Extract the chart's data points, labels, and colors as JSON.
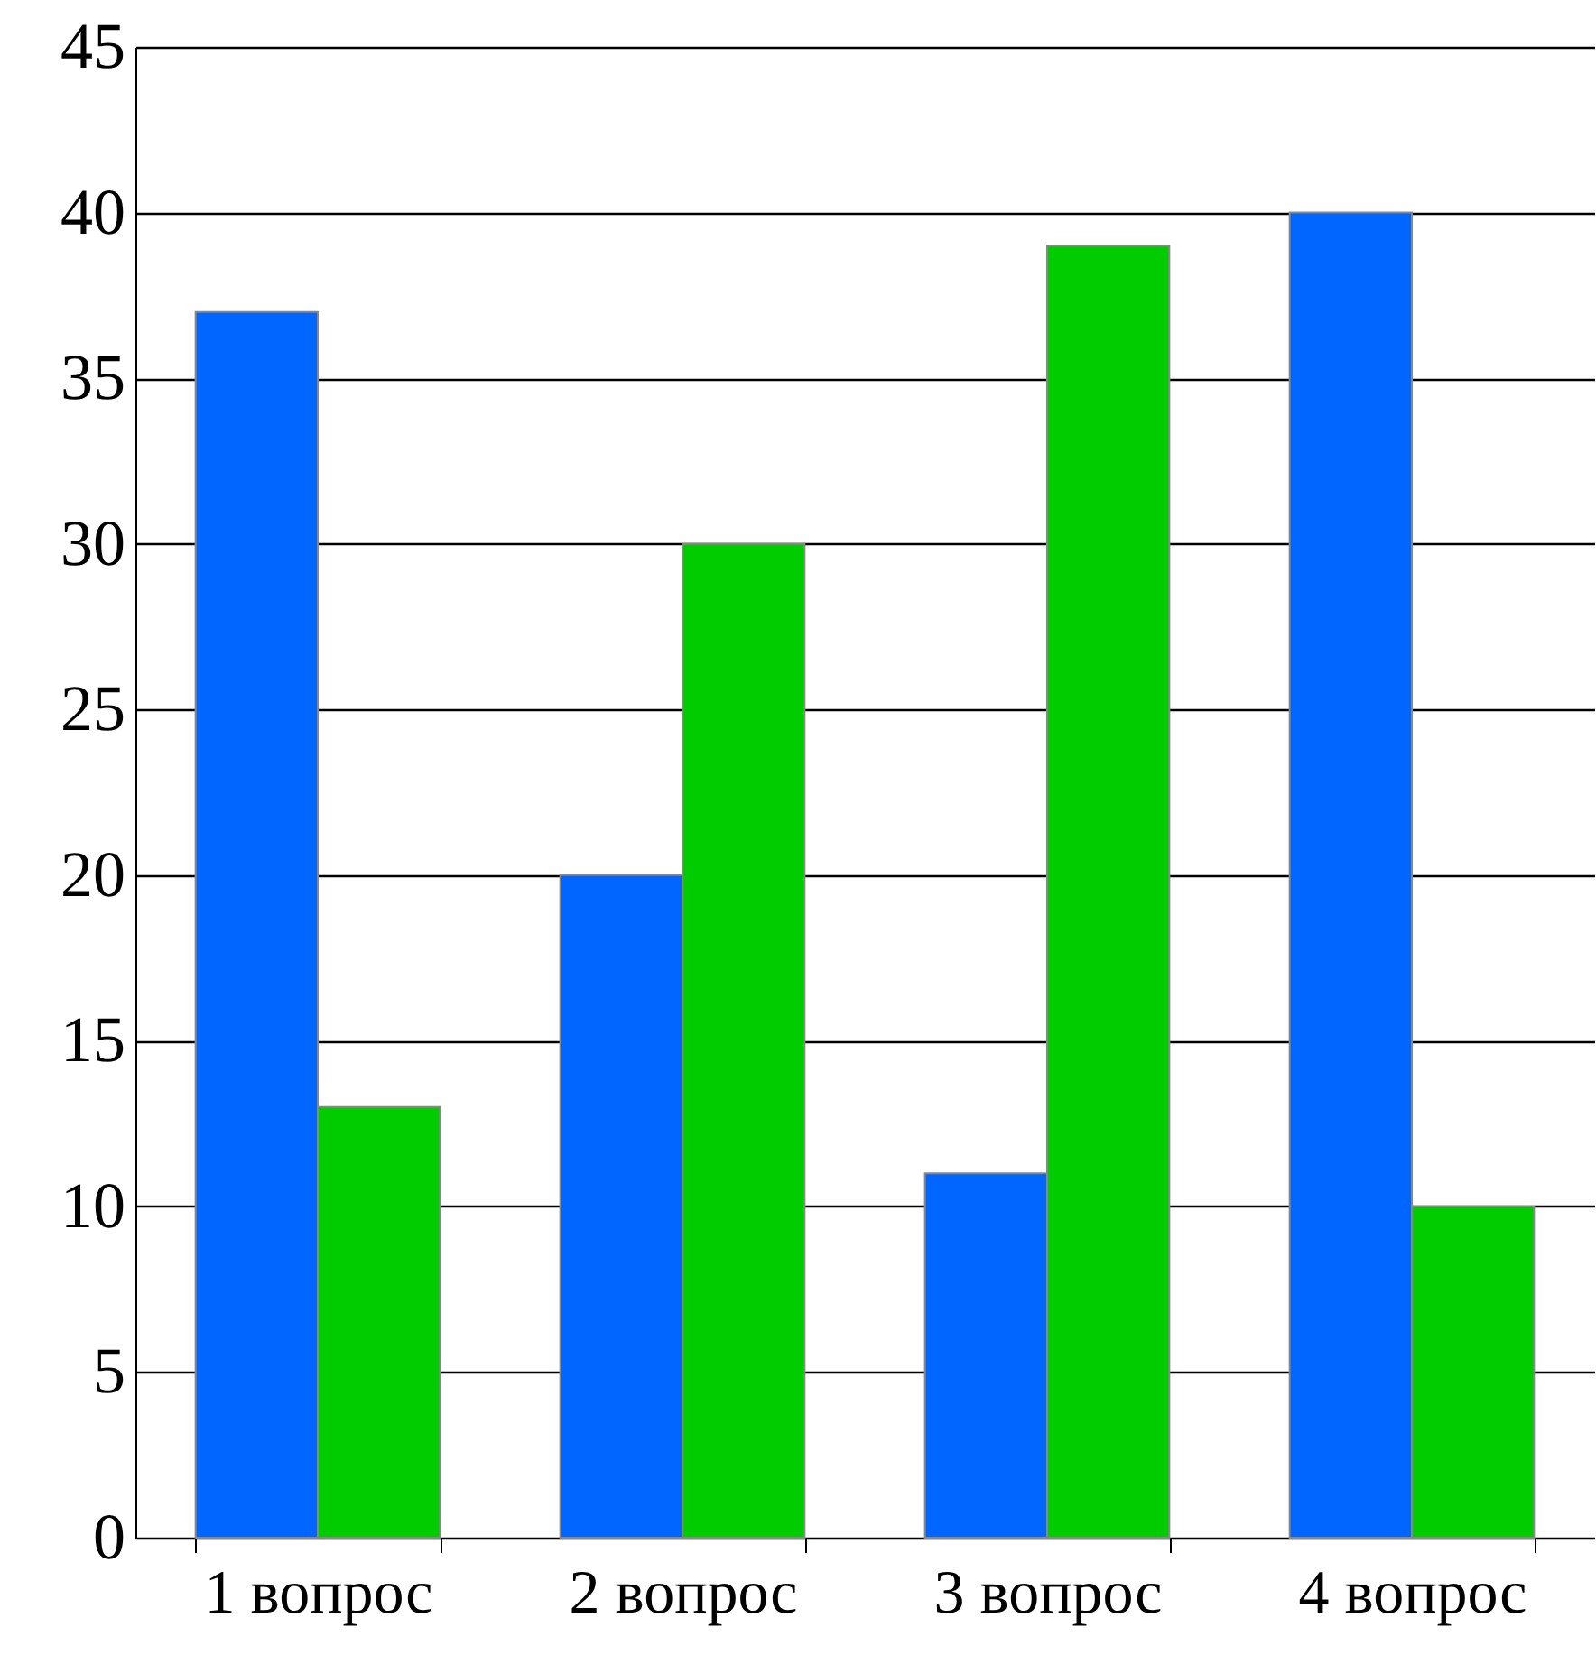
{
  "chart_data": {
    "type": "bar",
    "categories": [
      "1 вопрос",
      "2 вопрос",
      "3 вопрос",
      "4 вопрос"
    ],
    "series": [
      {
        "color": "#0066ff",
        "values": [
          37,
          20,
          11,
          40
        ]
      },
      {
        "color": "#00cc00",
        "values": [
          13,
          30,
          39,
          10
        ]
      }
    ],
    "ylim": [
      0,
      45
    ],
    "yticks": [
      0,
      5,
      10,
      15,
      20,
      25,
      30,
      35,
      40,
      45
    ],
    "grid": "y",
    "legend": false
  }
}
